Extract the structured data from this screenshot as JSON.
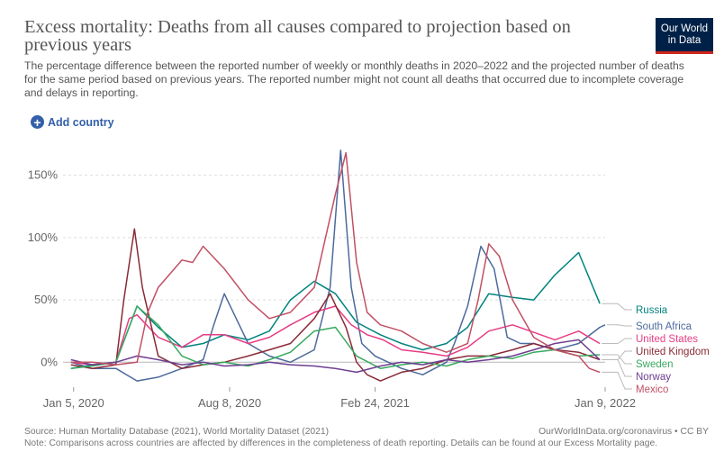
{
  "header": {
    "title": "Excess mortality: Deaths from all causes compared to projection based on previous years",
    "subtitle": "The percentage difference between the reported number of weekly or monthly deaths in 2020–2022 and the projected number of deaths for the same period based on previous years. The reported number might not count all deaths that occurred due to incomplete coverage and delays in reporting.",
    "logo_line1": "Our World",
    "logo_line2": "in Data",
    "logo_color": "#002147",
    "logo_accent": "#ce261e"
  },
  "controls": {
    "add_country_label": "Add country",
    "add_country_icon": "plus-circle-icon"
  },
  "footer": {
    "source": "Source: Human Mortality Database (2021), World Mortality Dataset (2021)",
    "note": "Note: Comparisons across countries are affected by differences in the completeness of death reporting. Details can be found at our Excess Mortality page.",
    "link": "OurWorldInData.org/coronavirus • CC BY"
  },
  "chart_data": {
    "type": "line",
    "title": "Excess mortality: Deaths from all causes compared to projection based on previous years",
    "xlabel": "",
    "ylabel": "",
    "x_ticks": [
      "Jan 5, 2020",
      "Aug 8, 2020",
      "Feb 24, 2021",
      "Jan 9, 2022"
    ],
    "x_tick_values": [
      2020.01,
      2020.6,
      2021.15,
      2022.02
    ],
    "xlim": [
      2019.97,
      2022.02
    ],
    "y_ticks": [
      0,
      50,
      100,
      150
    ],
    "y_tick_labels": [
      "0%",
      "50%",
      "100%",
      "150%"
    ],
    "ylim": [
      -20,
      175
    ],
    "grid": "horizontal dashed",
    "legend": "right, end-of-line labels",
    "series": [
      {
        "name": "Russia",
        "color": "#00847e",
        "x": [
          2020.0,
          2020.08,
          2020.17,
          2020.25,
          2020.33,
          2020.42,
          2020.5,
          2020.58,
          2020.67,
          2020.75,
          2020.83,
          2020.92,
          2021.0,
          2021.08,
          2021.17,
          2021.25,
          2021.33,
          2021.42,
          2021.5,
          2021.58,
          2021.67,
          2021.75,
          2021.83,
          2021.92,
          2022.0
        ],
        "y": [
          -5,
          -2,
          0,
          45,
          28,
          12,
          15,
          22,
          18,
          25,
          50,
          65,
          55,
          32,
          22,
          15,
          10,
          15,
          28,
          55,
          52,
          50,
          70,
          88,
          47
        ]
      },
      {
        "name": "South Africa",
        "color": "#4c6a9c",
        "x": [
          2020.0,
          2020.08,
          2020.17,
          2020.25,
          2020.33,
          2020.42,
          2020.5,
          2020.54,
          2020.58,
          2020.67,
          2020.75,
          2020.83,
          2020.92,
          2020.98,
          2021.02,
          2021.06,
          2021.1,
          2021.15,
          2021.2,
          2021.25,
          2021.33,
          2021.42,
          2021.45,
          2021.5,
          2021.55,
          2021.6,
          2021.65,
          2021.7,
          2021.75,
          2021.83,
          2021.92,
          2022.0,
          2022.02
        ],
        "y": [
          0,
          -5,
          -5,
          -15,
          -12,
          -5,
          2,
          30,
          55,
          15,
          5,
          0,
          10,
          60,
          170,
          60,
          15,
          5,
          0,
          -5,
          -10,
          0,
          15,
          45,
          93,
          75,
          20,
          15,
          15,
          10,
          15,
          28,
          30
        ]
      },
      {
        "name": "United States",
        "color": "#e63d84",
        "x": [
          2020.0,
          2020.08,
          2020.17,
          2020.22,
          2020.25,
          2020.33,
          2020.42,
          2020.5,
          2020.58,
          2020.67,
          2020.75,
          2020.83,
          2020.92,
          2021.0,
          2021.06,
          2021.12,
          2021.18,
          2021.25,
          2021.33,
          2021.42,
          2021.5,
          2021.58,
          2021.67,
          2021.75,
          2021.83,
          2021.92,
          2022.0
        ],
        "y": [
          0,
          -2,
          0,
          35,
          38,
          20,
          12,
          22,
          22,
          15,
          20,
          30,
          40,
          45,
          30,
          22,
          18,
          10,
          8,
          5,
          12,
          25,
          30,
          24,
          18,
          25,
          15
        ]
      },
      {
        "name": "United Kingdom",
        "color": "#8a2a37",
        "x": [
          2020.0,
          2020.08,
          2020.17,
          2020.2,
          2020.24,
          2020.27,
          2020.33,
          2020.42,
          2020.5,
          2020.58,
          2020.67,
          2020.75,
          2020.83,
          2020.92,
          2020.98,
          2021.04,
          2021.08,
          2021.12,
          2021.17,
          2021.25,
          2021.33,
          2021.42,
          2021.5,
          2021.58,
          2021.67,
          2021.75,
          2021.83,
          2021.92,
          2022.0
        ],
        "y": [
          -2,
          -5,
          -2,
          50,
          107,
          60,
          5,
          -5,
          -2,
          0,
          5,
          10,
          15,
          35,
          55,
          28,
          0,
          -10,
          -15,
          -8,
          -5,
          2,
          5,
          5,
          10,
          15,
          10,
          8,
          2
        ]
      },
      {
        "name": "Sweden",
        "color": "#38aa5e",
        "x": [
          2020.0,
          2020.08,
          2020.17,
          2020.25,
          2020.33,
          2020.42,
          2020.5,
          2020.58,
          2020.67,
          2020.75,
          2020.83,
          2020.92,
          2021.0,
          2021.08,
          2021.17,
          2021.25,
          2021.33,
          2021.42,
          2021.5,
          2021.58,
          2021.67,
          2021.75,
          2021.83,
          2021.92,
          2022.0
        ],
        "y": [
          -5,
          -3,
          0,
          45,
          30,
          5,
          -2,
          0,
          -3,
          2,
          8,
          25,
          28,
          5,
          -5,
          -2,
          0,
          -3,
          2,
          5,
          3,
          8,
          10,
          5,
          6
        ]
      },
      {
        "name": "Norway",
        "color": "#6d3e91",
        "x": [
          2020.0,
          2020.08,
          2020.17,
          2020.25,
          2020.33,
          2020.42,
          2020.5,
          2020.58,
          2020.67,
          2020.75,
          2020.83,
          2020.92,
          2021.0,
          2021.08,
          2021.17,
          2021.25,
          2021.33,
          2021.42,
          2021.5,
          2021.58,
          2021.67,
          2021.75,
          2021.83,
          2021.92,
          2022.0
        ],
        "y": [
          2,
          -2,
          0,
          5,
          2,
          -2,
          0,
          -3,
          -2,
          0,
          -2,
          -3,
          -5,
          -8,
          -3,
          0,
          -2,
          2,
          0,
          2,
          5,
          10,
          15,
          18,
          2
        ]
      },
      {
        "name": "Mexico",
        "color": "#c15065",
        "x": [
          2020.0,
          2020.08,
          2020.17,
          2020.25,
          2020.29,
          2020.33,
          2020.42,
          2020.46,
          2020.5,
          2020.58,
          2020.67,
          2020.75,
          2020.83,
          2020.92,
          2021.0,
          2021.04,
          2021.08,
          2021.12,
          2021.17,
          2021.25,
          2021.33,
          2021.42,
          2021.5,
          2021.54,
          2021.58,
          2021.62,
          2021.67,
          2021.75,
          2021.83,
          2021.92,
          2021.96,
          2022.0
        ],
        "y": [
          0,
          0,
          -2,
          0,
          40,
          60,
          82,
          80,
          93,
          75,
          50,
          35,
          40,
          60,
          135,
          168,
          80,
          40,
          30,
          25,
          15,
          8,
          15,
          50,
          95,
          85,
          50,
          20,
          10,
          5,
          -5,
          -8
        ]
      }
    ]
  }
}
